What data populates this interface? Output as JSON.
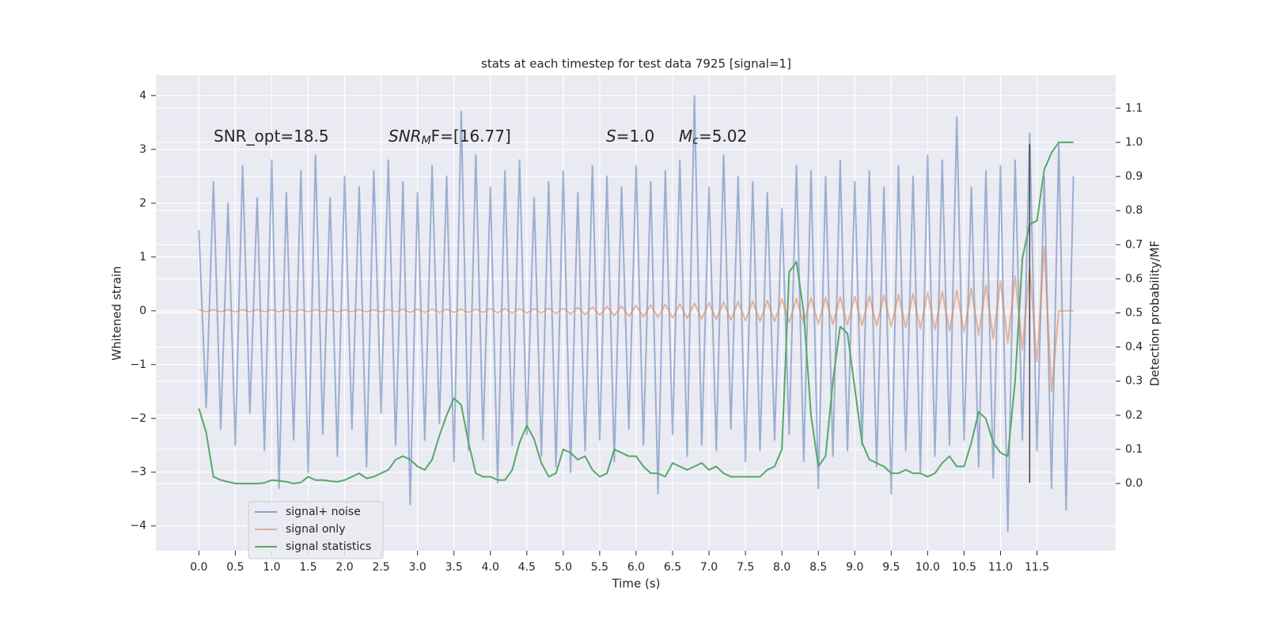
{
  "chart_data": {
    "type": "line",
    "title": "stats at each timestep for test data 7925 [signal=1]",
    "xlabel": "Time (s)",
    "ylabel": "Whitened strain",
    "y2label": "Detection probability/MF",
    "background": "#eaeaf2",
    "grid": true,
    "legend": "lower left",
    "annotations": [
      [
        {
          "text": "SNR_opt=18.5"
        }
      ],
      [
        {
          "text": "SNR",
          "italic": true
        },
        {
          "text": "M",
          "italic": true,
          "sub": true
        },
        {
          "text": "F=[16.77]",
          "italic": false
        }
      ],
      [
        {
          "text": "S",
          "italic": true
        },
        {
          "text": "=1.0"
        }
      ],
      [
        {
          "text": "M",
          "italic": true
        },
        {
          "text": "c",
          "italic": true,
          "sub": true
        },
        {
          "text": "=5.02"
        }
      ]
    ],
    "marker_time": 11.4,
    "marker_color": "#444444",
    "xlim": [
      -0.59,
      12.58
    ],
    "ylim": [
      -4.46,
      4.38
    ],
    "y2lim": [
      -0.197,
      1.197
    ],
    "xticks": [
      {
        "value": 0,
        "label": "0.0"
      },
      0.5,
      {
        "value": 1,
        "label": "1.0"
      },
      1.5,
      {
        "value": 2,
        "label": "2.0"
      },
      2.5,
      {
        "value": 3,
        "label": "3.0"
      },
      3.5,
      {
        "value": 4,
        "label": "4.0"
      },
      4.5,
      {
        "value": 5,
        "label": "5.0"
      },
      5.5,
      {
        "value": 6,
        "label": "6.0"
      },
      6.5,
      {
        "value": 7,
        "label": "7.0"
      },
      7.5,
      {
        "value": 8,
        "label": "8.0"
      },
      8.5,
      {
        "value": 9,
        "label": "9.0"
      },
      9.5,
      {
        "value": 10,
        "label": "10.0"
      },
      10.5,
      {
        "value": 11,
        "label": "11.0"
      },
      11.5
    ],
    "yticks": [
      {
        "value": -4,
        "label": "−4"
      },
      {
        "value": -3,
        "label": "−3"
      },
      {
        "value": -2,
        "label": "−2"
      },
      {
        "value": -1,
        "label": "−1"
      },
      0,
      1,
      2,
      3,
      4
    ],
    "y2ticks": [
      {
        "value": 0,
        "label": "0.0"
      },
      0.1,
      0.2,
      0.3,
      0.4,
      0.5,
      0.6,
      0.7,
      0.8,
      0.9,
      {
        "value": 1,
        "label": "1.0"
      },
      1.1
    ],
    "x": [
      0.0,
      0.1,
      0.2,
      0.3,
      0.4,
      0.5,
      0.6,
      0.7,
      0.8,
      0.9,
      1.0,
      1.1,
      1.2,
      1.3,
      1.4,
      1.5,
      1.6,
      1.7,
      1.8,
      1.9,
      2.0,
      2.1,
      2.2,
      2.3,
      2.4,
      2.5,
      2.6,
      2.7,
      2.8,
      2.9,
      3.0,
      3.1,
      3.2,
      3.3,
      3.4,
      3.5,
      3.6,
      3.7,
      3.8,
      3.9,
      4.0,
      4.1,
      4.2,
      4.3,
      4.4,
      4.5,
      4.6,
      4.7,
      4.8,
      4.9,
      5.0,
      5.1,
      5.2,
      5.3,
      5.4,
      5.5,
      5.6,
      5.7,
      5.8,
      5.9,
      6.0,
      6.1,
      6.2,
      6.3,
      6.4,
      6.5,
      6.6,
      6.7,
      6.8,
      6.9,
      7.0,
      7.1,
      7.2,
      7.3,
      7.4,
      7.5,
      7.6,
      7.7,
      7.8,
      7.9,
      8.0,
      8.1,
      8.2,
      8.3,
      8.4,
      8.5,
      8.6,
      8.7,
      8.8,
      8.9,
      9.0,
      9.1,
      9.2,
      9.3,
      9.4,
      9.5,
      9.6,
      9.7,
      9.8,
      9.9,
      10.0,
      10.1,
      10.2,
      10.3,
      10.4,
      10.5,
      10.6,
      10.7,
      10.8,
      10.9,
      11.0,
      11.1,
      11.2,
      11.3,
      11.4,
      11.5,
      11.6,
      11.7,
      11.8,
      11.9,
      12.0
    ],
    "series": [
      {
        "name": "signal+ noise",
        "color": "#4c72b0",
        "values": [
          1.5,
          -1.8,
          2.4,
          -2.2,
          2.0,
          -2.5,
          2.7,
          -1.9,
          2.1,
          -2.6,
          2.8,
          -3.3,
          2.2,
          -2.4,
          2.6,
          -3.0,
          2.9,
          -2.3,
          2.1,
          -2.7,
          2.5,
          -2.2,
          2.3,
          -2.9,
          2.6,
          -1.9,
          2.8,
          -2.5,
          2.4,
          -3.6,
          2.2,
          -2.4,
          2.7,
          -2.1,
          2.5,
          -2.8,
          3.7,
          -2.6,
          2.9,
          -2.4,
          2.3,
          -3.2,
          2.6,
          -2.5,
          2.8,
          -2.3,
          2.1,
          -2.7,
          2.4,
          -2.9,
          2.6,
          -3.0,
          2.2,
          -2.6,
          2.7,
          -2.4,
          2.5,
          -2.8,
          2.3,
          -2.2,
          2.7,
          -2.5,
          2.4,
          -3.4,
          2.6,
          -2.3,
          2.8,
          -2.7,
          4.0,
          -2.5,
          2.3,
          -2.6,
          2.9,
          -2.2,
          2.5,
          -2.8,
          2.4,
          -2.6,
          2.2,
          -2.4,
          1.9,
          -2.3,
          2.7,
          -2.8,
          2.6,
          -3.3,
          2.5,
          -2.7,
          2.8,
          -2.6,
          2.4,
          -2.5,
          2.6,
          -2.9,
          2.3,
          -3.4,
          2.7,
          -2.6,
          2.5,
          -3.0,
          2.9,
          -2.7,
          2.8,
          -2.5,
          3.6,
          -2.4,
          2.3,
          -2.9,
          2.6,
          -3.1,
          2.7,
          -4.1,
          2.8,
          -2.4,
          3.3,
          -2.6,
          2.5,
          -3.3,
          3.1,
          -3.7,
          2.5
        ]
      },
      {
        "name": "signal only",
        "color": "#dd8452",
        "values": [
          0.02,
          -0.02,
          0.02,
          -0.02,
          0.02,
          -0.02,
          0.02,
          -0.02,
          0.02,
          -0.02,
          0.02,
          -0.02,
          0.02,
          -0.02,
          0.02,
          -0.02,
          0.02,
          -0.02,
          0.02,
          -0.02,
          0.02,
          -0.02,
          0.02,
          -0.02,
          0.02,
          -0.02,
          0.02,
          -0.02,
          0.03,
          -0.03,
          0.03,
          -0.03,
          0.03,
          -0.03,
          0.03,
          -0.03,
          0.03,
          -0.03,
          0.03,
          -0.03,
          0.04,
          -0.04,
          0.04,
          -0.04,
          0.04,
          -0.04,
          0.04,
          -0.04,
          0.05,
          -0.05,
          0.05,
          -0.06,
          0.06,
          -0.07,
          0.07,
          -0.08,
          0.08,
          -0.09,
          0.09,
          -0.1,
          0.1,
          -0.11,
          0.11,
          -0.12,
          0.12,
          -0.13,
          0.13,
          -0.14,
          0.14,
          -0.15,
          0.15,
          -0.16,
          0.16,
          -0.17,
          0.17,
          -0.18,
          0.18,
          -0.19,
          0.19,
          -0.2,
          0.22,
          -0.22,
          0.23,
          -0.23,
          0.24,
          -0.24,
          0.25,
          -0.25,
          0.26,
          -0.26,
          0.27,
          -0.27,
          0.28,
          -0.28,
          0.29,
          -0.29,
          0.3,
          -0.31,
          0.32,
          -0.33,
          0.34,
          -0.35,
          0.36,
          -0.37,
          0.38,
          -0.4,
          0.42,
          -0.45,
          0.48,
          -0.52,
          0.55,
          -0.6,
          0.65,
          -0.72,
          0.8,
          -0.95,
          1.2,
          -1.5,
          0,
          0,
          0
        ]
      },
      {
        "name": "signal statistics",
        "color": "#55a868",
        "axis": "y2",
        "values": [
          0.22,
          0.15,
          0.02,
          0.01,
          0.005,
          0.0,
          0.0,
          0.0,
          0.0,
          0.002,
          0.01,
          0.008,
          0.005,
          0.0,
          0.003,
          0.02,
          0.01,
          0.01,
          0.007,
          0.005,
          0.01,
          0.02,
          0.03,
          0.015,
          0.02,
          0.03,
          0.04,
          0.07,
          0.08,
          0.07,
          0.05,
          0.04,
          0.07,
          0.14,
          0.2,
          0.25,
          0.23,
          0.12,
          0.03,
          0.02,
          0.02,
          0.01,
          0.01,
          0.04,
          0.12,
          0.17,
          0.13,
          0.06,
          0.02,
          0.03,
          0.1,
          0.09,
          0.07,
          0.08,
          0.04,
          0.02,
          0.03,
          0.1,
          0.09,
          0.08,
          0.08,
          0.05,
          0.03,
          0.03,
          0.02,
          0.06,
          0.05,
          0.04,
          0.05,
          0.06,
          0.04,
          0.05,
          0.03,
          0.02,
          0.02,
          0.02,
          0.02,
          0.02,
          0.04,
          0.05,
          0.1,
          0.62,
          0.65,
          0.5,
          0.2,
          0.05,
          0.08,
          0.3,
          0.46,
          0.44,
          0.28,
          0.12,
          0.07,
          0.06,
          0.05,
          0.03,
          0.03,
          0.04,
          0.03,
          0.03,
          0.02,
          0.03,
          0.06,
          0.08,
          0.05,
          0.05,
          0.12,
          0.21,
          0.19,
          0.12,
          0.09,
          0.08,
          0.3,
          0.66,
          0.76,
          0.77,
          0.92,
          0.97,
          1.0,
          1.0,
          1.0
        ]
      }
    ]
  }
}
